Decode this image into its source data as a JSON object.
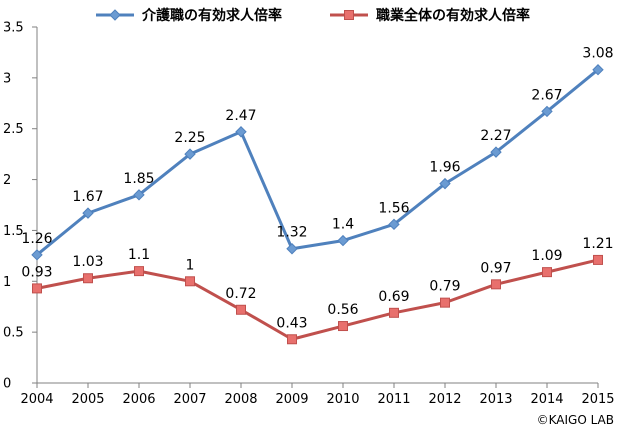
{
  "chart_data": {
    "type": "line",
    "categories": [
      "2004",
      "2005",
      "2006",
      "2007",
      "2008",
      "2009",
      "2010",
      "2011",
      "2012",
      "2013",
      "2014",
      "2015"
    ],
    "ylim": [
      0,
      3.5
    ],
    "yticks": [
      "0",
      "0.5",
      "1",
      "1.5",
      "2",
      "2.5",
      "3",
      "3.5"
    ],
    "grid": false,
    "legend_position": "top",
    "series": [
      {
        "name": "介護職の有効求人倍率",
        "color": "#4F81BD",
        "marker_color": "#6B9BD2",
        "marker": "diamond",
        "values": [
          1.26,
          1.67,
          1.85,
          2.25,
          2.47,
          1.32,
          1.4,
          1.56,
          1.96,
          2.27,
          2.67,
          3.08
        ],
        "labels": [
          "1.26",
          "1.67",
          "1.85",
          "2.25",
          "2.47",
          "1.32",
          "1.4",
          "1.56",
          "1.96",
          "2.27",
          "2.67",
          "3.08"
        ]
      },
      {
        "name": "職業全体の有効求人倍率",
        "color": "#C0504D",
        "marker_color": "#E8706D",
        "marker": "square",
        "values": [
          0.93,
          1.03,
          1.1,
          1.0,
          0.72,
          0.43,
          0.56,
          0.69,
          0.79,
          0.97,
          1.09,
          1.21
        ],
        "labels": [
          "0.93",
          "1.03",
          "1.1",
          "1",
          "0.72",
          "0.43",
          "0.56",
          "0.69",
          "0.79",
          "0.97",
          "1.09",
          "1.21"
        ]
      }
    ],
    "credit": "©KAIGO LAB"
  }
}
